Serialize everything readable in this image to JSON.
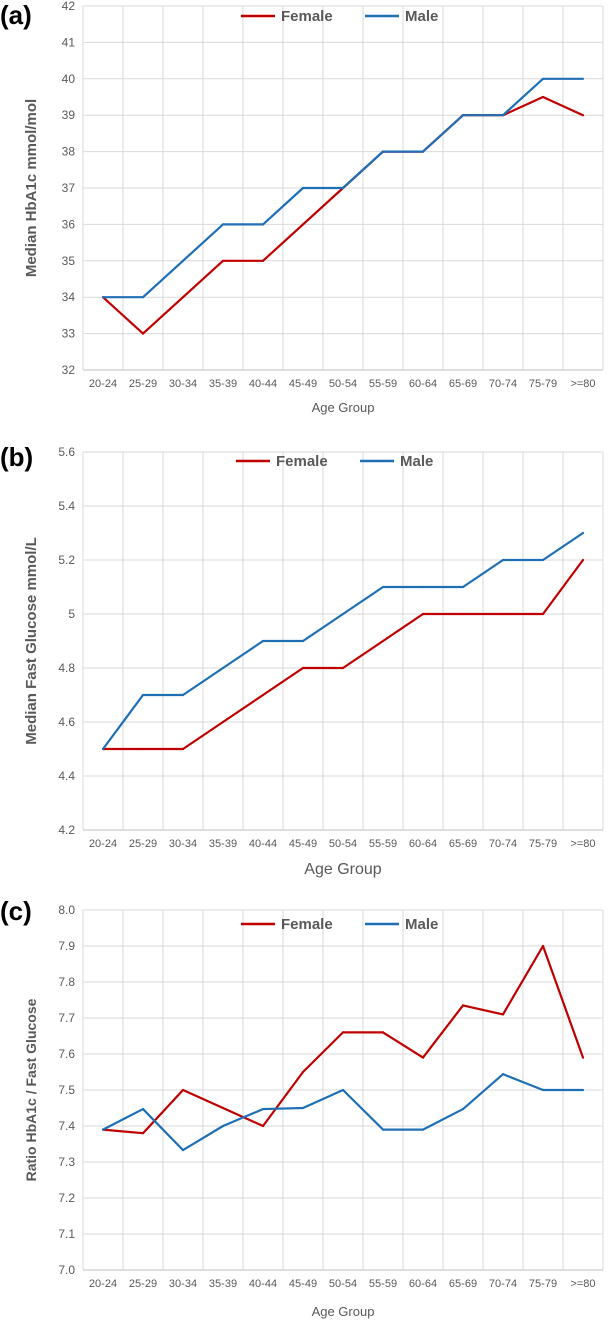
{
  "colors": {
    "female": "#c00000",
    "male": "#1f6fb5"
  },
  "chart_data": [
    {
      "panel": "(a)",
      "type": "line",
      "title": "",
      "xlabel": "Age Group",
      "ylabel": "Median HbA1c  mmol/mol",
      "ylim": [
        32,
        42
      ],
      "yticks": [
        "32",
        "33",
        "34",
        "35",
        "36",
        "37",
        "38",
        "39",
        "40",
        "41",
        "42"
      ],
      "ytick_values": [
        32,
        33,
        34,
        35,
        36,
        37,
        38,
        39,
        40,
        41,
        42
      ],
      "categories": [
        "20-24",
        "25-29",
        "30-34",
        "35-39",
        "40-44",
        "45-49",
        "50-54",
        "55-59",
        "60-64",
        "65-69",
        "70-74",
        "75-79",
        ">=80"
      ],
      "legend_position": "top",
      "series": [
        {
          "name": "Female",
          "color": "#c00000",
          "values": [
            34,
            33,
            34,
            35,
            35,
            36,
            37,
            38,
            38,
            39,
            39,
            39.5,
            39
          ]
        },
        {
          "name": "Male",
          "color": "#1f6fb5",
          "values": [
            34,
            34,
            35,
            36,
            36,
            37,
            37,
            38,
            38,
            39,
            39,
            40,
            40
          ]
        }
      ]
    },
    {
      "panel": "(b)",
      "type": "line",
      "title": "",
      "xlabel": "Age Group",
      "ylabel": "Median Fast Glucose mmol/L",
      "ylim": [
        4.2,
        5.6
      ],
      "yticks": [
        "4.2",
        "4.4",
        "4.6",
        "4.8",
        "5",
        "5.2",
        "5.4",
        "5.6"
      ],
      "ytick_values": [
        4.2,
        4.4,
        4.6,
        4.8,
        5,
        5.2,
        5.4,
        5.6
      ],
      "categories": [
        "20-24",
        "25-29",
        "30-34",
        "35-39",
        "40-44",
        "45-49",
        "50-54",
        "55-59",
        "60-64",
        "65-69",
        "70-74",
        "75-79",
        ">=80"
      ],
      "legend_position": "top",
      "series": [
        {
          "name": "Female",
          "color": "#c00000",
          "values": [
            4.5,
            4.5,
            4.5,
            4.6,
            4.7,
            4.8,
            4.8,
            4.9,
            5.0,
            5.0,
            5.0,
            5.0,
            5.2
          ]
        },
        {
          "name": "Male",
          "color": "#1f6fb5",
          "values": [
            4.5,
            4.7,
            4.7,
            4.8,
            4.9,
            4.9,
            5.0,
            5.1,
            5.1,
            5.1,
            5.2,
            5.2,
            5.3
          ]
        }
      ]
    },
    {
      "panel": "(c)",
      "type": "line",
      "title": "",
      "xlabel": "Age Group",
      "ylabel": "Ratio HbA1c / Fast Glucose",
      "ylim": [
        7.0,
        8.0
      ],
      "yticks": [
        "7.0",
        "7.1",
        "7.2",
        "7.3",
        "7.4",
        "7.5",
        "7.6",
        "7.7",
        "7.8",
        "7.9",
        "8.0"
      ],
      "ytick_values": [
        7.0,
        7.1,
        7.2,
        7.3,
        7.4,
        7.5,
        7.6,
        7.7,
        7.8,
        7.9,
        8.0
      ],
      "categories": [
        "20-24",
        "25-29",
        "30-34",
        "35-39",
        "40-44",
        "45-49",
        "50-54",
        "55-59",
        "60-64",
        "65-69",
        "70-74",
        "75-79",
        ">=80"
      ],
      "legend_position": "top",
      "series": [
        {
          "name": "Female",
          "color": "#c00000",
          "values": [
            7.39,
            7.38,
            7.5,
            7.45,
            7.4,
            7.55,
            7.66,
            7.66,
            7.59,
            7.735,
            7.71,
            7.9,
            7.59
          ]
        },
        {
          "name": "Male",
          "color": "#1f6fb5",
          "values": [
            7.39,
            7.447,
            7.333,
            7.4,
            7.447,
            7.45,
            7.5,
            7.39,
            7.39,
            7.447,
            7.544,
            7.5,
            7.5
          ]
        }
      ]
    }
  ]
}
